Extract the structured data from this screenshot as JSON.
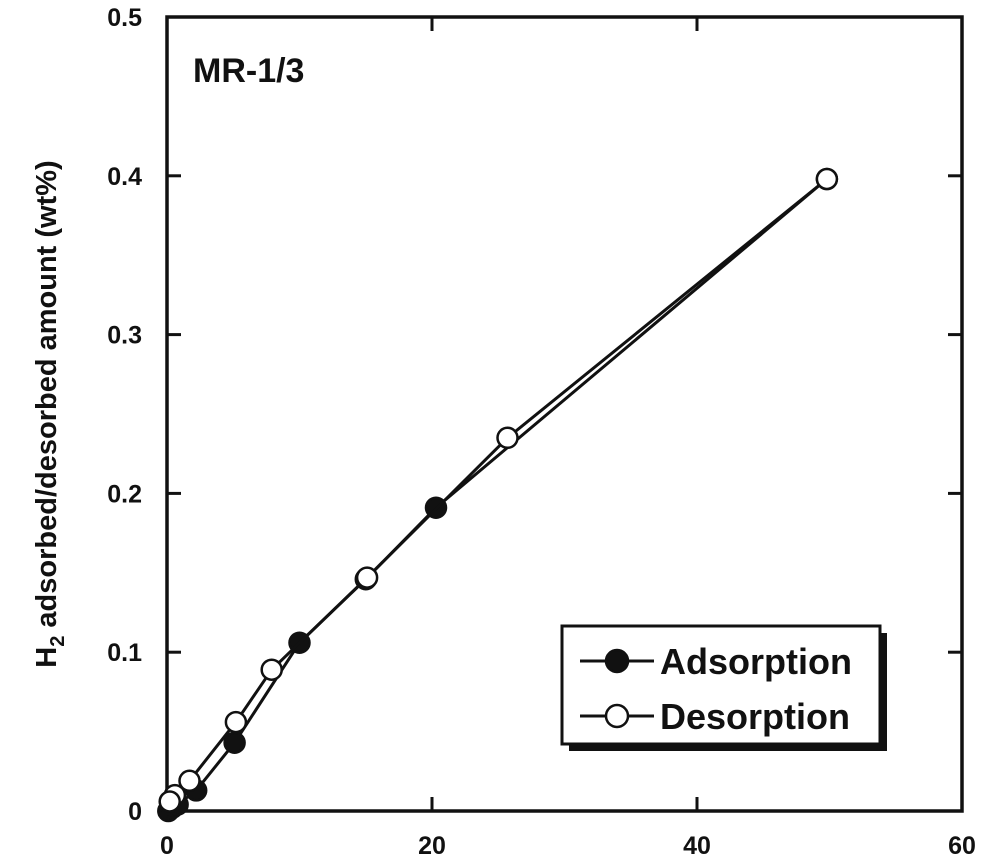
{
  "chart_data": {
    "type": "line",
    "title": "",
    "annotation": "MR-1/3",
    "xlabel": "",
    "ylabel_main": "H",
    "ylabel_sub": "2",
    "ylabel_rest": " adsorbed/desorbed amount (wt%)",
    "xlim": [
      0,
      60
    ],
    "ylim": [
      0,
      0.5
    ],
    "x_ticks": [
      {
        "value": 0,
        "label": "0"
      },
      {
        "value": 20,
        "label": "20"
      },
      {
        "value": 40,
        "label": "40"
      },
      {
        "value": 60,
        "label": "60"
      }
    ],
    "y_ticks": [
      {
        "value": 0,
        "label": "0"
      },
      {
        "value": 0.1,
        "label": "0.1"
      },
      {
        "value": 0.2,
        "label": "0.2"
      },
      {
        "value": 0.3,
        "label": "0.3"
      },
      {
        "value": 0.4,
        "label": "0.4"
      },
      {
        "value": 0.5,
        "label": "0.5"
      }
    ],
    "grid": false,
    "legend_position": "bottom-right",
    "series": [
      {
        "name": "Adsorption",
        "marker": "filled-circle",
        "color": "#111111",
        "points": [
          {
            "x": 0.1,
            "y": 0.0
          },
          {
            "x": 0.4,
            "y": 0.002
          },
          {
            "x": 0.8,
            "y": 0.004
          },
          {
            "x": 2.2,
            "y": 0.013
          },
          {
            "x": 5.1,
            "y": 0.043
          },
          {
            "x": 10.0,
            "y": 0.106
          },
          {
            "x": 15.0,
            "y": 0.146
          },
          {
            "x": 20.3,
            "y": 0.191
          },
          {
            "x": 49.8,
            "y": 0.398
          }
        ]
      },
      {
        "name": "Desorption",
        "marker": "open-circle",
        "color": "#111111",
        "points": [
          {
            "x": 49.8,
            "y": 0.398
          },
          {
            "x": 25.7,
            "y": 0.235
          },
          {
            "x": 15.1,
            "y": 0.147
          },
          {
            "x": 7.9,
            "y": 0.089
          },
          {
            "x": 5.2,
            "y": 0.056
          },
          {
            "x": 1.7,
            "y": 0.019
          },
          {
            "x": 0.6,
            "y": 0.01
          },
          {
            "x": 0.2,
            "y": 0.006
          }
        ]
      }
    ]
  }
}
